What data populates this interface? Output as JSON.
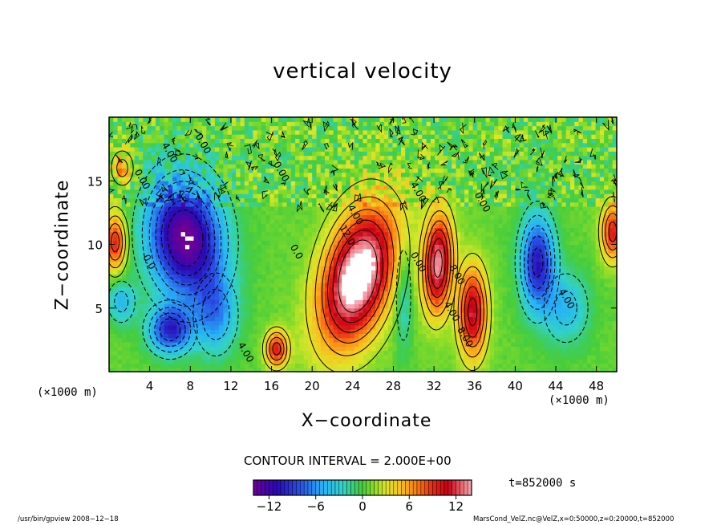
{
  "chart_data": {
    "type": "heatmap",
    "title": "vertical velocity",
    "xlabel": "X−coordinate",
    "ylabel": "Z−coordinate",
    "x_unit": "(×1000 m)",
    "xlim": [
      0,
      50
    ],
    "ylim": [
      0,
      20
    ],
    "x_ticks": [
      4,
      8,
      12,
      16,
      20,
      24,
      28,
      32,
      36,
      40,
      44,
      48
    ],
    "y_ticks": [
      5,
      10,
      15
    ],
    "contour_interval_label": "CONTOUR INTERVAL = 2.000E+00",
    "time_label": "t=852000 s",
    "colorbar": {
      "min": -14,
      "max": 14,
      "ticks": [
        -12,
        -6,
        0,
        6,
        12
      ]
    },
    "contour_labels": [
      {
        "x": 18.2,
        "y": 9.3,
        "text": "0.0"
      },
      {
        "x": 24.0,
        "y": 12.2,
        "text": "4.00"
      },
      {
        "x": 23.2,
        "y": 10.6,
        "text": "12.0"
      },
      {
        "x": 30.2,
        "y": 8.5,
        "text": "0.00"
      },
      {
        "x": 30.2,
        "y": 14.0,
        "text": "4.00"
      },
      {
        "x": 34.0,
        "y": 7.5,
        "text": "8.00"
      },
      {
        "x": 34.8,
        "y": 2.6,
        "text": "8.00"
      },
      {
        "x": 33.5,
        "y": 4.6,
        "text": "4.00"
      },
      {
        "x": 36.5,
        "y": 13.2,
        "text": "0.00"
      },
      {
        "x": 44.8,
        "y": 5.6,
        "text": "4.00"
      },
      {
        "x": 13.2,
        "y": 1.4,
        "text": "4.00"
      },
      {
        "x": 3.7,
        "y": 8.5,
        "text": "0.0"
      },
      {
        "x": 5.7,
        "y": 17.1,
        "text": "4.00"
      },
      {
        "x": 3.0,
        "y": 15.0,
        "text": "0.00"
      },
      {
        "x": 9.0,
        "y": 17.8,
        "text": "0.00"
      },
      {
        "x": 16.7,
        "y": 15.6,
        "text": "0.00"
      }
    ],
    "features": [
      {
        "kind": "updraft",
        "x": 24.5,
        "z": 7.5,
        "sx": 2.4,
        "sz": 3.8,
        "tilt": 0.6,
        "amp": 16
      },
      {
        "kind": "updraft",
        "x": 32.4,
        "z": 8.5,
        "sx": 1.0,
        "sz": 2.7,
        "tilt": 0.1,
        "amp": 13
      },
      {
        "kind": "updraft",
        "x": 35.8,
        "z": 4.7,
        "sx": 1.0,
        "sz": 2.5,
        "tilt": 0.0,
        "amp": 11
      },
      {
        "kind": "updraft",
        "x": 16.5,
        "z": 1.8,
        "sx": 0.8,
        "sz": 1.0,
        "tilt": 0.0,
        "amp": 9
      },
      {
        "kind": "updraft",
        "x": 0.6,
        "z": 10.2,
        "sx": 0.8,
        "sz": 1.6,
        "tilt": 0.0,
        "amp": 9
      },
      {
        "kind": "updraft",
        "x": 49.6,
        "z": 11.0,
        "sx": 0.8,
        "sz": 1.6,
        "tilt": 0.0,
        "amp": 9
      },
      {
        "kind": "updraft",
        "x": 1.3,
        "z": 16.0,
        "sx": 0.8,
        "sz": 1.0,
        "tilt": 0.0,
        "amp": 5
      },
      {
        "kind": "downdraft",
        "x": 7.5,
        "z": 10.5,
        "sx": 2.6,
        "sz": 3.3,
        "tilt": -0.2,
        "amp": -15
      },
      {
        "kind": "downdraft",
        "x": 6.0,
        "z": 3.3,
        "sx": 1.5,
        "sz": 1.3,
        "tilt": 0.0,
        "amp": -10
      },
      {
        "kind": "downdraft",
        "x": 42.2,
        "z": 8.6,
        "sx": 1.2,
        "sz": 2.6,
        "tilt": 0.0,
        "amp": -11
      },
      {
        "kind": "downdraft",
        "x": 45.0,
        "z": 5.0,
        "sx": 1.6,
        "sz": 2.0,
        "tilt": 0.0,
        "amp": -5
      },
      {
        "kind": "downdraft",
        "x": 10.5,
        "z": 4.5,
        "sx": 1.5,
        "sz": 2.2,
        "tilt": 0.0,
        "amp": -6
      },
      {
        "kind": "downdraft",
        "x": 29.0,
        "z": 6.0,
        "sx": 0.6,
        "sz": 3.0,
        "tilt": 0.0,
        "amp": -4
      },
      {
        "kind": "downdraft",
        "x": 1.2,
        "z": 5.5,
        "sx": 1.0,
        "sz": 1.2,
        "tilt": 0.0,
        "amp": -5
      }
    ]
  },
  "footer": {
    "left": "/usr/bin/gpview   2008−12−18",
    "right": "MarsCond_VelZ.nc@VelZ,x=0:50000,z=0:20000,t=852000"
  }
}
